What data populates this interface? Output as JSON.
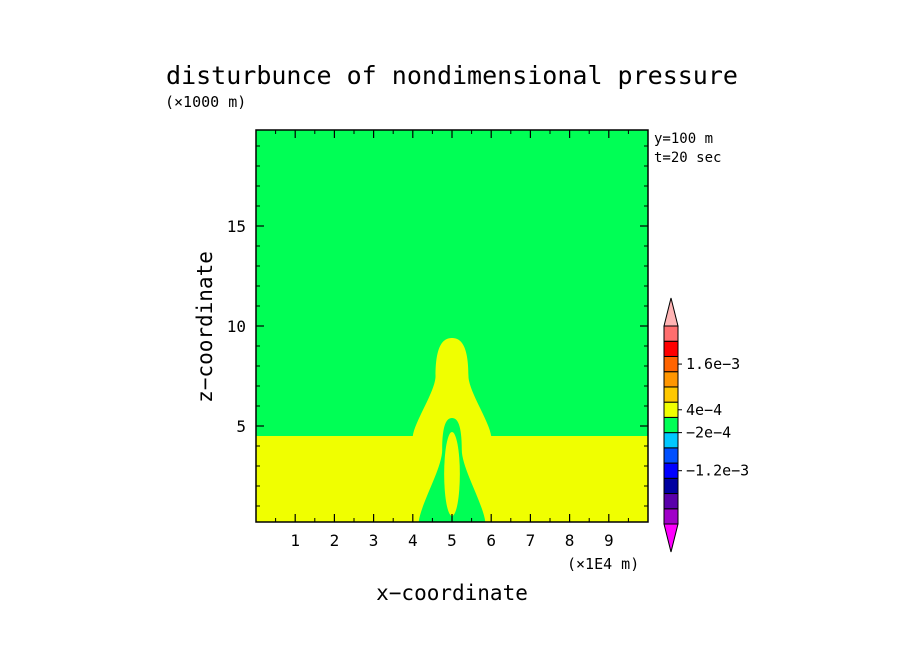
{
  "chart_data": {
    "type": "heatmap",
    "title": "disturbunce of nondimensional pressure",
    "y_unit_note": "(×1000 m)",
    "x_unit_note": "(×1E4 m)",
    "xlabel": "x−coordinate",
    "ylabel": "z−coordinate",
    "annotations": [
      "y=100 m",
      "t=20 sec"
    ],
    "xlim": [
      0,
      10
    ],
    "ylim": [
      0.2,
      19.8
    ],
    "x_ticks": [
      1,
      2,
      3,
      4,
      5,
      6,
      7,
      8,
      9
    ],
    "x_tick_labels": [
      "1",
      "2",
      "3",
      "4",
      "5",
      "6",
      "7",
      "8",
      "9"
    ],
    "y_ticks": [
      5,
      10,
      15
    ],
    "y_tick_labels": [
      "5",
      "10",
      "15"
    ],
    "y_minor_ticks": [
      1,
      2,
      3,
      4,
      6,
      7,
      8,
      9,
      11,
      12,
      13,
      14,
      16,
      17,
      18,
      19
    ],
    "x_minor_ticks": [
      0.5,
      1.5,
      2.5,
      3.5,
      4.5,
      5.5,
      6.5,
      7.5,
      8.5,
      9.5
    ],
    "background_color": "#00ff55",
    "fields": [
      {
        "name": "surface-layer",
        "color": "#f0ff00",
        "shape": "rect",
        "x": [
          0,
          10
        ],
        "z": [
          0.2,
          4.5
        ]
      },
      {
        "name": "outer-plume",
        "color": "#f0ff00",
        "shape": "dome",
        "x_center": 5.0,
        "half_width_base": 1.0,
        "half_width_top": 0.42,
        "z_base": 4.5,
        "z_shoulder": 7.5,
        "z_top": 9.4
      },
      {
        "name": "inner-core",
        "color": "#00ff55",
        "shape": "dome",
        "x_center": 5.0,
        "half_width_base": 0.85,
        "half_width_top": 0.25,
        "z_base": 0.2,
        "z_shoulder": 3.8,
        "z_top": 5.4
      },
      {
        "name": "core-center",
        "color": "#f0ff00",
        "shape": "ellipse",
        "x_center": 5.0,
        "z_center": 2.6,
        "x_radius": 0.2,
        "z_radius": 2.1
      }
    ],
    "colorbar": {
      "colors": [
        "#ff00ff",
        "#a000c8",
        "#5a00aa",
        "#0000a0",
        "#0000ff",
        "#0050ff",
        "#00c8ff",
        "#00ff55",
        "#f0ff00",
        "#ffc800",
        "#ff9600",
        "#ff6400",
        "#ff0000",
        "#ff6e6e",
        "#ffb4b4"
      ],
      "labels": [
        {
          "text": "1.6e−3",
          "at_level": 11.5
        },
        {
          "text": "4e−4",
          "at_level": 8.5
        },
        {
          "text": "−2e−4",
          "at_level": 7
        },
        {
          "text": "−1.2e−3",
          "at_level": 4.5
        }
      ]
    }
  }
}
